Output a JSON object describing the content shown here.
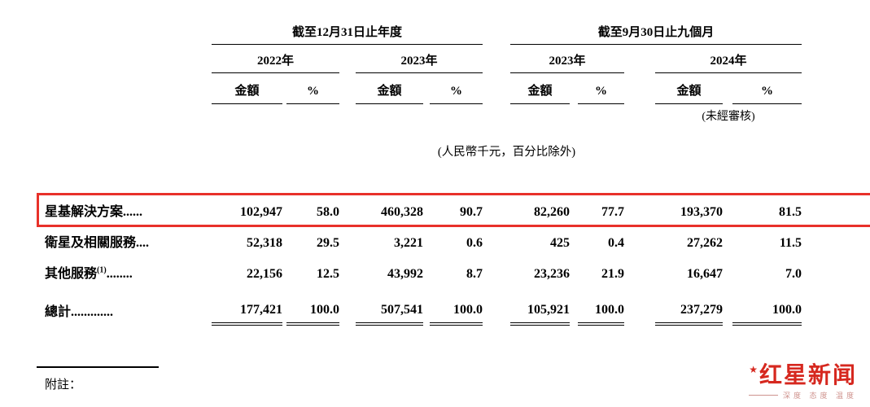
{
  "header": {
    "group1": "截至12月31日止年度",
    "group2": "截至9月30日止九個月",
    "years": [
      "2022年",
      "2023年",
      "2023年",
      "2024年"
    ],
    "amount": "金額",
    "percent": "%",
    "unaudited": "(未經審核)",
    "unit_note": "(人民幣千元，百分比除外)"
  },
  "rows": [
    {
      "label": "星基解決方案",
      "dots": "......",
      "values": [
        "102,947",
        "58.0",
        "460,328",
        "90.7",
        "82,260",
        "77.7",
        "193,370",
        "81.5"
      ]
    },
    {
      "label": "衛星及相關服務",
      "dots": "....",
      "values": [
        "52,318",
        "29.5",
        "3,221",
        "0.6",
        "425",
        "0.4",
        "27,262",
        "11.5"
      ]
    },
    {
      "label": "其他服務",
      "sup": "(1)",
      "dots": "........",
      "values": [
        "22,156",
        "12.5",
        "43,992",
        "8.7",
        "23,236",
        "21.9",
        "16,647",
        "7.0"
      ]
    }
  ],
  "total": {
    "label": "總計",
    "dots": ".............",
    "values": [
      "177,421",
      "100.0",
      "507,541",
      "100.0",
      "105,921",
      "100.0",
      "237,279",
      "100.0"
    ]
  },
  "footnote": {
    "label": "附註："
  },
  "logo": {
    "title": "红星新闻",
    "tagline": "深度 态度 温度",
    "color": "#d6281f"
  },
  "highlight_color": "#e8312a"
}
